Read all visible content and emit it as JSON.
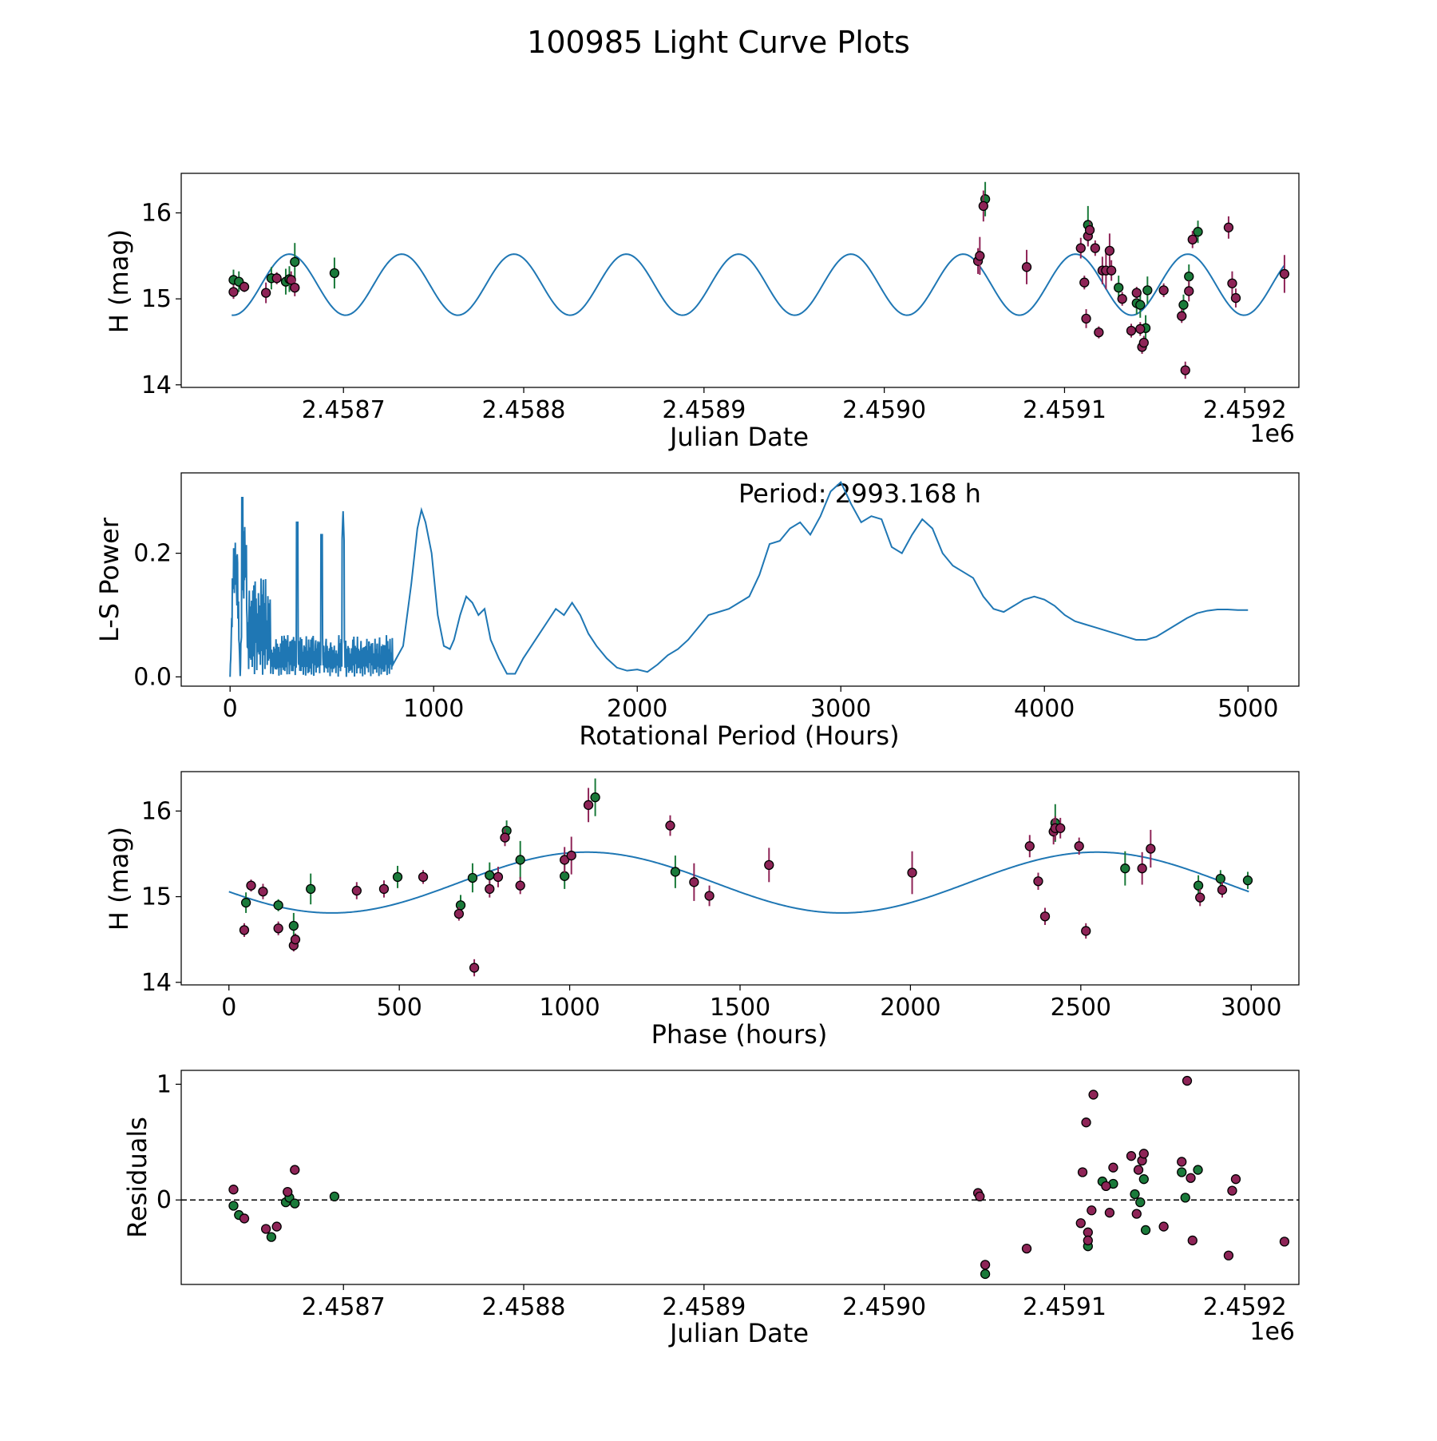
{
  "figure_title": "100985 Light Curve Plots",
  "colors": {
    "line": "#1f77b4",
    "green": "#1a7a3a",
    "purple": "#8e2457",
    "marker_edge": "#000000"
  },
  "chart_data": [
    {
      "type": "scatter",
      "name": "light-curve",
      "title": "",
      "xlabel": "Julian Date",
      "ylabel": "H (mag)",
      "x_offset_label": "1e6",
      "xlim": [
        2.45861,
        2.45923
      ],
      "ylim": [
        13.97,
        16.46
      ],
      "xticks": [
        2.4587,
        2.4588,
        2.4589,
        2.459,
        2.4591,
        2.4592
      ],
      "xtick_labels": [
        "2.4587",
        "2.4588",
        "2.4589",
        "2.4590",
        "2.4591",
        "2.4592"
      ],
      "yticks": [
        14,
        15,
        16
      ],
      "ytick_labels": [
        "14",
        "15",
        "16"
      ],
      "model": {
        "mean": 15.165,
        "amplitude": 0.355,
        "period_jd": 6.23e-05,
        "phase_ref_jd": 2.45867,
        "x_start": 2.458638,
        "x_end": 2.459222
      },
      "series": [
        {
          "name": "green",
          "color": "#1a7a3a",
          "x": [
            2.458639,
            2.458642,
            2.45866,
            2.458668,
            2.45867,
            2.458673,
            2.458695,
            2.459056,
            2.459113,
            2.45913,
            2.45914,
            2.459142,
            2.459145,
            2.459146,
            2.459166,
            2.459169,
            2.459174
          ],
          "y": [
            15.22,
            15.2,
            15.24,
            15.2,
            15.23,
            15.43,
            15.3,
            16.16,
            15.86,
            15.13,
            14.95,
            14.93,
            14.66,
            15.1,
            14.93,
            15.26,
            15.78
          ],
          "err": [
            0.12,
            0.12,
            0.13,
            0.15,
            0.15,
            0.22,
            0.18,
            0.2,
            0.22,
            0.14,
            0.13,
            0.15,
            0.15,
            0.16,
            0.12,
            0.14,
            0.13
          ]
        },
        {
          "name": "purple",
          "color": "#8e2457",
          "x": [
            2.458639,
            2.458645,
            2.458657,
            2.458663,
            2.458671,
            2.458673,
            2.459052,
            2.459053,
            2.459055,
            2.459079,
            2.459109,
            2.459111,
            2.459112,
            2.459113,
            2.459114,
            2.459117,
            2.459119,
            2.459121,
            2.459123,
            2.459125,
            2.459126,
            2.459132,
            2.459137,
            2.45914,
            2.459142,
            2.459143,
            2.459144,
            2.459155,
            2.459165,
            2.459167,
            2.459169,
            2.459171,
            2.459191,
            2.459193,
            2.459195,
            2.459222
          ],
          "y": [
            15.08,
            15.14,
            15.07,
            15.24,
            15.22,
            15.13,
            15.44,
            15.5,
            16.08,
            15.37,
            15.59,
            15.19,
            14.77,
            15.73,
            15.8,
            15.59,
            14.61,
            15.33,
            15.33,
            15.56,
            15.33,
            15.0,
            14.63,
            15.07,
            14.65,
            14.44,
            14.49,
            15.1,
            14.8,
            14.17,
            15.09,
            15.69,
            15.83,
            15.18,
            15.01,
            15.29
          ],
          "err": [
            0.08,
            0.06,
            0.12,
            0.07,
            0.1,
            0.1,
            0.15,
            0.22,
            0.18,
            0.2,
            0.12,
            0.08,
            0.11,
            0.12,
            0.1,
            0.09,
            0.07,
            0.16,
            0.22,
            0.2,
            0.12,
            0.08,
            0.08,
            0.07,
            0.08,
            0.08,
            0.08,
            0.08,
            0.08,
            0.1,
            0.12,
            0.1,
            0.13,
            0.14,
            0.11,
            0.22
          ]
        }
      ]
    },
    {
      "type": "line",
      "name": "periodogram",
      "xlabel": "Rotational Period (Hours)",
      "ylabel": "L-S Power",
      "annotation": "Period: 2993.168 h",
      "annotation_at": [
        2993.168,
        0.3
      ],
      "xlim": [
        -240,
        5250
      ],
      "ylim": [
        -0.015,
        0.33
      ],
      "xticks": [
        0,
        1000,
        2000,
        3000,
        4000,
        5000
      ],
      "xtick_labels": [
        "0",
        "1000",
        "2000",
        "3000",
        "4000",
        "5000"
      ],
      "yticks": [
        0.0,
        0.2
      ],
      "ytick_labels": [
        "0.0",
        "0.2"
      ],
      "series": [
        {
          "name": "smooth-tail",
          "color": "#1f77b4",
          "x": [
            800,
            850,
            890,
            920,
            940,
            960,
            990,
            1020,
            1050,
            1080,
            1100,
            1130,
            1160,
            1190,
            1220,
            1250,
            1280,
            1320,
            1360,
            1400,
            1440,
            1480,
            1520,
            1560,
            1600,
            1640,
            1680,
            1720,
            1760,
            1800,
            1850,
            1900,
            1950,
            2000,
            2050,
            2100,
            2150,
            2200,
            2250,
            2300,
            2350,
            2400,
            2450,
            2500,
            2550,
            2600,
            2650,
            2700,
            2750,
            2800,
            2850,
            2900,
            2950,
            3000,
            3050,
            3100,
            3150,
            3200,
            3250,
            3300,
            3350,
            3400,
            3450,
            3500,
            3550,
            3600,
            3650,
            3700,
            3750,
            3800,
            3850,
            3900,
            3950,
            4000,
            4050,
            4100,
            4150,
            4200,
            4250,
            4300,
            4350,
            4400,
            4450,
            4500,
            4550,
            4600,
            4650,
            4700,
            4750,
            4800,
            4850,
            4900,
            4950,
            5000
          ],
          "y": [
            0.02,
            0.05,
            0.15,
            0.24,
            0.27,
            0.25,
            0.2,
            0.1,
            0.05,
            0.045,
            0.06,
            0.1,
            0.13,
            0.12,
            0.1,
            0.11,
            0.06,
            0.03,
            0.005,
            0.005,
            0.03,
            0.05,
            0.07,
            0.09,
            0.11,
            0.1,
            0.12,
            0.1,
            0.07,
            0.05,
            0.03,
            0.015,
            0.01,
            0.012,
            0.008,
            0.02,
            0.035,
            0.045,
            0.06,
            0.08,
            0.1,
            0.105,
            0.11,
            0.12,
            0.13,
            0.165,
            0.215,
            0.22,
            0.24,
            0.25,
            0.23,
            0.26,
            0.3,
            0.315,
            0.28,
            0.25,
            0.26,
            0.255,
            0.21,
            0.2,
            0.23,
            0.255,
            0.24,
            0.2,
            0.18,
            0.17,
            0.16,
            0.13,
            0.11,
            0.105,
            0.115,
            0.125,
            0.13,
            0.125,
            0.115,
            0.1,
            0.09,
            0.085,
            0.08,
            0.075,
            0.07,
            0.065,
            0.06,
            0.06,
            0.065,
            0.075,
            0.085,
            0.095,
            0.103,
            0.107,
            0.109,
            0.109,
            0.108,
            0.108
          ]
        }
      ]
    },
    {
      "type": "scatter",
      "name": "phase-folded",
      "xlabel": "Phase (hours)",
      "ylabel": "H (mag)",
      "xlim": [
        -140,
        3140
      ],
      "ylim": [
        13.97,
        16.46
      ],
      "xticks": [
        0,
        500,
        1000,
        1500,
        2000,
        2500,
        3000
      ],
      "xtick_labels": [
        "0",
        "500",
        "1000",
        "1500",
        "2000",
        "2500",
        "3000"
      ],
      "yticks": [
        14,
        15,
        16
      ],
      "ytick_labels": [
        "14",
        "15",
        "16"
      ],
      "model": {
        "mean": 15.165,
        "amplitude": 0.355,
        "period_h": 1496.584,
        "peak_h": 1050,
        "x_start": 0,
        "x_end": 2993.168
      },
      "series": [
        {
          "name": "green",
          "color": "#1a7a3a",
          "x": [
            50,
            145,
            190,
            240,
            495,
            680,
            715,
            765,
            815,
            855,
            985,
            1075,
            1310,
            2425,
            2630,
            2845,
            2910,
            2990
          ],
          "y": [
            14.93,
            14.9,
            14.66,
            15.09,
            15.23,
            14.9,
            15.22,
            15.25,
            15.77,
            15.43,
            15.24,
            16.16,
            15.29,
            15.86,
            15.33,
            15.13,
            15.21,
            15.19
          ],
          "err": [
            0.12,
            0.07,
            0.15,
            0.18,
            0.13,
            0.12,
            0.17,
            0.15,
            0.12,
            0.22,
            0.15,
            0.22,
            0.19,
            0.22,
            0.2,
            0.12,
            0.1,
            0.1
          ]
        },
        {
          "name": "purple",
          "color": "#8e2457",
          "x": [
            45,
            65,
            100,
            145,
            190,
            195,
            375,
            455,
            570,
            675,
            720,
            765,
            790,
            810,
            855,
            985,
            1005,
            1055,
            1295,
            1365,
            1410,
            1585,
            2005,
            2350,
            2375,
            2395,
            2420,
            2425,
            2440,
            2495,
            2515,
            2680,
            2705,
            2850,
            2915
          ],
          "y": [
            14.61,
            15.13,
            15.06,
            14.63,
            14.43,
            14.5,
            15.07,
            15.09,
            15.23,
            14.8,
            14.17,
            15.09,
            15.23,
            15.69,
            15.13,
            15.43,
            15.48,
            16.07,
            15.83,
            15.17,
            15.01,
            15.37,
            15.28,
            15.59,
            15.18,
            14.77,
            15.76,
            15.8,
            15.8,
            15.59,
            14.6,
            15.33,
            15.56,
            14.99,
            15.08
          ],
          "err": [
            0.08,
            0.07,
            0.09,
            0.08,
            0.07,
            0.07,
            0.1,
            0.1,
            0.08,
            0.08,
            0.1,
            0.1,
            0.12,
            0.1,
            0.1,
            0.15,
            0.22,
            0.2,
            0.12,
            0.22,
            0.12,
            0.2,
            0.25,
            0.13,
            0.1,
            0.1,
            0.15,
            0.14,
            0.12,
            0.1,
            0.09,
            0.19,
            0.22,
            0.1,
            0.09
          ]
        }
      ]
    },
    {
      "type": "scatter",
      "name": "residuals",
      "xlabel": "Julian Date",
      "ylabel": "Residuals",
      "x_offset_label": "1e6",
      "xlim": [
        2.45861,
        2.45923
      ],
      "ylim": [
        -0.73,
        1.12
      ],
      "xticks": [
        2.4587,
        2.4588,
        2.4589,
        2.459,
        2.4591,
        2.4592
      ],
      "xtick_labels": [
        "2.4587",
        "2.4588",
        "2.4589",
        "2.4590",
        "2.4591",
        "2.4592"
      ],
      "yticks": [
        0,
        1
      ],
      "ytick_labels": [
        "0",
        "1"
      ],
      "zero_line": 0,
      "series": [
        {
          "name": "green",
          "color": "#1a7a3a",
          "x": [
            2.458639,
            2.458642,
            2.45866,
            2.458668,
            2.45867,
            2.458673,
            2.458695,
            2.459056,
            2.459113,
            2.459121,
            2.459127,
            2.459139,
            2.459142,
            2.459144,
            2.459145,
            2.459165,
            2.459167,
            2.459174
          ],
          "y": [
            -0.05,
            -0.13,
            -0.32,
            -0.02,
            0.02,
            -0.03,
            0.03,
            -0.64,
            -0.4,
            0.16,
            0.14,
            0.05,
            -0.02,
            0.18,
            -0.26,
            0.24,
            0.02,
            0.26
          ],
          "err": []
        },
        {
          "name": "purple",
          "color": "#8e2457",
          "x": [
            2.458639,
            2.458645,
            2.458657,
            2.458663,
            2.458669,
            2.458673,
            2.459052,
            2.459053,
            2.459056,
            2.459079,
            2.459109,
            2.45911,
            2.459112,
            2.459113,
            2.459113,
            2.459115,
            2.459116,
            2.459123,
            2.459125,
            2.459127,
            2.459137,
            2.45914,
            2.459141,
            2.459143,
            2.459144,
            2.459155,
            2.459165,
            2.459168,
            2.45917,
            2.459171,
            2.459191,
            2.459193,
            2.459195,
            2.459222
          ],
          "y": [
            0.09,
            -0.16,
            -0.25,
            -0.23,
            0.07,
            0.26,
            0.06,
            0.03,
            -0.56,
            -0.42,
            -0.2,
            0.24,
            0.67,
            -0.28,
            -0.35,
            -0.09,
            0.91,
            0.12,
            -0.11,
            0.28,
            0.38,
            -0.12,
            0.26,
            0.34,
            0.4,
            -0.23,
            0.33,
            1.03,
            0.19,
            -0.35,
            -0.48,
            0.08,
            0.18,
            -0.36
          ],
          "err": []
        }
      ]
    }
  ]
}
